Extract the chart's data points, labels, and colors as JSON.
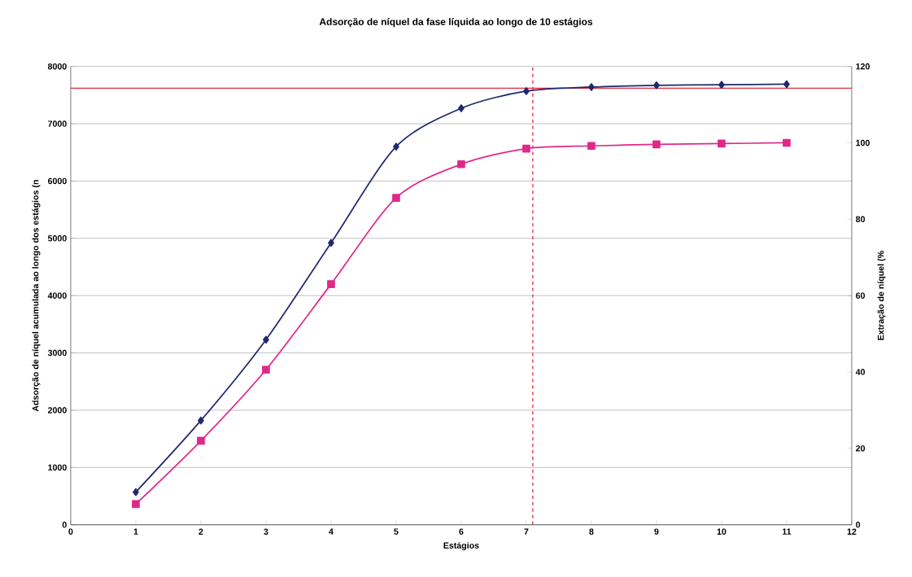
{
  "chart_data": {
    "type": "line",
    "title": "Adsorção de níquel da fase líquida ao longo de 10 estágios",
    "xlabel": "Estágios",
    "ylabel": "Adsorção de níquel acumulada ao longo dos estágios (n",
    "y2label": "Extração de níquel (%",
    "x": [
      1,
      2,
      3,
      4,
      5,
      6,
      7,
      8,
      9,
      10,
      11
    ],
    "series": [
      {
        "color": "#1f2a6e",
        "marker": "diamond",
        "values": [
          570,
          1820,
          3230,
          4920,
          6600,
          7270,
          7570,
          7640,
          7670,
          7680,
          7690
        ]
      },
      {
        "color": "#e0288a",
        "marker": "square",
        "axis": "y2",
        "values": [
          5.4,
          22,
          40.6,
          63,
          85.6,
          94.4,
          98.5,
          99.2,
          99.6,
          99.8,
          100
        ]
      }
    ],
    "xlim": [
      0,
      12
    ],
    "xticks": [
      0,
      1,
      2,
      3,
      4,
      5,
      6,
      7,
      8,
      9,
      10,
      11,
      12
    ],
    "ylim": [
      0,
      8000
    ],
    "yticks": [
      0,
      1000,
      2000,
      3000,
      4000,
      5000,
      6000,
      7000,
      8000
    ],
    "y2lim": [
      0,
      120
    ],
    "y2ticks": [
      0,
      20,
      40,
      60,
      80,
      100,
      120
    ],
    "ref_lines": [
      {
        "axis": "y",
        "value": 7620,
        "color": "#e8283c",
        "line_style": "solid"
      },
      {
        "axis": "x",
        "value": 7.1,
        "color": "#e8283c",
        "line_style": "dashed"
      }
    ],
    "grid": "y"
  }
}
